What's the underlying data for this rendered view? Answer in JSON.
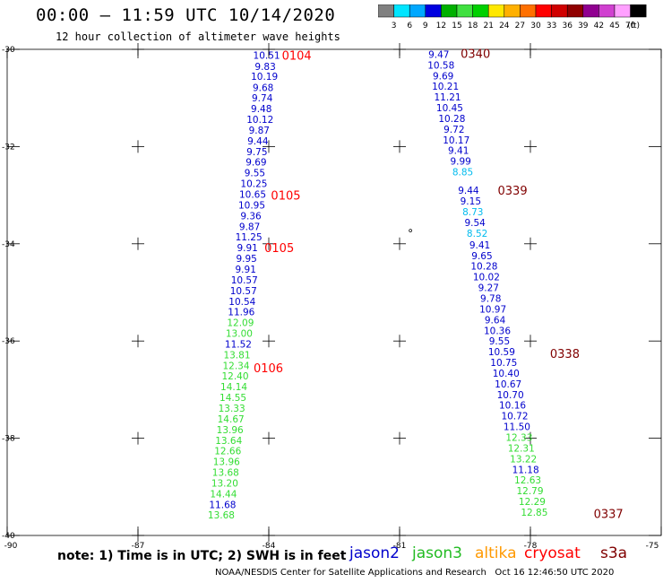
{
  "header": {
    "title": "00:00 – 11:59 UTC 10/14/2020",
    "subtitle": "12 hour collection of altimeter wave heights"
  },
  "colorbar": {
    "unit_label": "(ft)",
    "bins": [
      {
        "label": "3",
        "color": "#808080"
      },
      {
        "label": "6",
        "color": "#00e5ff"
      },
      {
        "label": "9",
        "color": "#00a8ff"
      },
      {
        "label": "12",
        "color": "#0000e0"
      },
      {
        "label": "15",
        "color": "#00b000"
      },
      {
        "label": "18",
        "color": "#40e040"
      },
      {
        "label": "21",
        "color": "#00d000"
      },
      {
        "label": "24",
        "color": "#ffe800"
      },
      {
        "label": "27",
        "color": "#ffb000"
      },
      {
        "label": "30",
        "color": "#ff7000"
      },
      {
        "label": "33",
        "color": "#ff0000"
      },
      {
        "label": "36",
        "color": "#d00000"
      },
      {
        "label": "39",
        "color": "#900000"
      },
      {
        "label": "42",
        "color": "#900090"
      },
      {
        "label": "45",
        "color": "#d040d0"
      },
      {
        "label": "70",
        "color": "#ffa0ff"
      },
      {
        "label": "",
        "color": "#000000"
      }
    ]
  },
  "map": {
    "lat_range": [
      -40,
      -30
    ],
    "lon_range": [
      -90,
      -75
    ],
    "lat_ticks": [
      "-30",
      "-32",
      "-34",
      "-36",
      "-38",
      "-40"
    ],
    "lon_ticks": [
      "-90",
      "-87",
      "-84",
      "-81",
      "-78",
      "-75"
    ],
    "colors": {
      "jason2": "#0000cc",
      "jason3": "#33dd33",
      "altika": "#ff9900",
      "cryosat": "#ff0000",
      "s3a": "#800000",
      "light_blue": "#00bbee"
    },
    "tracks": [
      {
        "name": "track-west",
        "points": [
          {
            "v": "10.51",
            "lat": -30.12,
            "lon": -84.05,
            "c": "jason2"
          },
          {
            "v": "9.83",
            "lat": -30.35,
            "lon": -84.08,
            "c": "jason2"
          },
          {
            "v": "10.19",
            "lat": -30.55,
            "lon": -84.1,
            "c": "jason2"
          },
          {
            "v": "9.68",
            "lat": -30.78,
            "lon": -84.13,
            "c": "jason2"
          },
          {
            "v": "9.74",
            "lat": -31.0,
            "lon": -84.15,
            "c": "jason2"
          },
          {
            "v": "9.48",
            "lat": -31.22,
            "lon": -84.17,
            "c": "jason2"
          },
          {
            "v": "10.12",
            "lat": -31.44,
            "lon": -84.2,
            "c": "jason2"
          },
          {
            "v": "9.87",
            "lat": -31.66,
            "lon": -84.22,
            "c": "jason2"
          },
          {
            "v": "9.44",
            "lat": -31.88,
            "lon": -84.25,
            "c": "jason2"
          },
          {
            "v": "9.75",
            "lat": -32.1,
            "lon": -84.27,
            "c": "jason2"
          },
          {
            "v": "9.69",
            "lat": -32.32,
            "lon": -84.29,
            "c": "jason2"
          },
          {
            "v": "9.55",
            "lat": -32.54,
            "lon": -84.32,
            "c": "jason2"
          },
          {
            "v": "10.25",
            "lat": -32.76,
            "lon": -84.34,
            "c": "jason2"
          },
          {
            "v": "10.65",
            "lat": -32.98,
            "lon": -84.37,
            "c": "jason2"
          },
          {
            "v": "10.95",
            "lat": -33.2,
            "lon": -84.39,
            "c": "jason2"
          },
          {
            "v": "9.36",
            "lat": -33.42,
            "lon": -84.41,
            "c": "jason2"
          },
          {
            "v": "9.87",
            "lat": -33.64,
            "lon": -84.44,
            "c": "jason2"
          },
          {
            "v": "11.25",
            "lat": -33.86,
            "lon": -84.46,
            "c": "jason2"
          },
          {
            "v": "9.91",
            "lat": -34.08,
            "lon": -84.49,
            "c": "jason2"
          },
          {
            "v": "9.95",
            "lat": -34.3,
            "lon": -84.51,
            "c": "jason2"
          },
          {
            "v": "9.91",
            "lat": -34.52,
            "lon": -84.53,
            "c": "jason2"
          },
          {
            "v": "10.57",
            "lat": -34.74,
            "lon": -84.56,
            "c": "jason2"
          },
          {
            "v": "10.57",
            "lat": -34.96,
            "lon": -84.58,
            "c": "jason2"
          },
          {
            "v": "10.54",
            "lat": -35.18,
            "lon": -84.61,
            "c": "jason2"
          },
          {
            "v": "11.96",
            "lat": -35.4,
            "lon": -84.63,
            "c": "jason2"
          },
          {
            "v": "12.09",
            "lat": -35.62,
            "lon": -84.65,
            "c": "jason3"
          },
          {
            "v": "13.00",
            "lat": -35.84,
            "lon": -84.68,
            "c": "jason3"
          },
          {
            "v": "11.52",
            "lat": -36.06,
            "lon": -84.7,
            "c": "jason2"
          },
          {
            "v": "13.81",
            "lat": -36.28,
            "lon": -84.73,
            "c": "jason3"
          },
          {
            "v": "12.34",
            "lat": -36.5,
            "lon": -84.75,
            "c": "jason3"
          },
          {
            "v": "12.40",
            "lat": -36.72,
            "lon": -84.77,
            "c": "jason3"
          },
          {
            "v": "14.14",
            "lat": -36.94,
            "lon": -84.8,
            "c": "jason3"
          },
          {
            "v": "14.55",
            "lat": -37.16,
            "lon": -84.82,
            "c": "jason3"
          },
          {
            "v": "13.33",
            "lat": -37.38,
            "lon": -84.85,
            "c": "jason3"
          },
          {
            "v": "14.67",
            "lat": -37.6,
            "lon": -84.87,
            "c": "jason3"
          },
          {
            "v": "13.96",
            "lat": -37.82,
            "lon": -84.89,
            "c": "jason3"
          },
          {
            "v": "13.64",
            "lat": -38.04,
            "lon": -84.92,
            "c": "jason3"
          },
          {
            "v": "12.66",
            "lat": -38.26,
            "lon": -84.94,
            "c": "jason3"
          },
          {
            "v": "13.96",
            "lat": -38.48,
            "lon": -84.97,
            "c": "jason3"
          },
          {
            "v": "13.68",
            "lat": -38.7,
            "lon": -84.99,
            "c": "jason3"
          },
          {
            "v": "13.20",
            "lat": -38.92,
            "lon": -85.01,
            "c": "jason3"
          },
          {
            "v": "14.44",
            "lat": -39.14,
            "lon": -85.04,
            "c": "jason3"
          },
          {
            "v": "11.68",
            "lat": -39.36,
            "lon": -85.06,
            "c": "jason2"
          },
          {
            "v": "13.68",
            "lat": -39.58,
            "lon": -85.09,
            "c": "jason3"
          }
        ]
      },
      {
        "name": "track-east",
        "points": [
          {
            "v": "9.47",
            "lat": -30.1,
            "lon": -80.1,
            "c": "jason2"
          },
          {
            "v": "10.58",
            "lat": -30.32,
            "lon": -80.05,
            "c": "jason2"
          },
          {
            "v": "9.69",
            "lat": -30.54,
            "lon": -80.0,
            "c": "jason2"
          },
          {
            "v": "10.21",
            "lat": -30.76,
            "lon": -79.95,
            "c": "jason2"
          },
          {
            "v": "11.21",
            "lat": -30.98,
            "lon": -79.9,
            "c": "jason2"
          },
          {
            "v": "10.45",
            "lat": -31.2,
            "lon": -79.85,
            "c": "jason2"
          },
          {
            "v": "10.28",
            "lat": -31.42,
            "lon": -79.8,
            "c": "jason2"
          },
          {
            "v": "9.72",
            "lat": -31.64,
            "lon": -79.75,
            "c": "jason2"
          },
          {
            "v": "10.17",
            "lat": -31.86,
            "lon": -79.7,
            "c": "jason2"
          },
          {
            "v": "9.41",
            "lat": -32.08,
            "lon": -79.65,
            "c": "jason2"
          },
          {
            "v": "9.99",
            "lat": -32.3,
            "lon": -79.6,
            "c": "jason2"
          },
          {
            "v": "8.85",
            "lat": -32.52,
            "lon": -79.55,
            "c": "light_blue"
          },
          {
            "v": "9.44",
            "lat": -32.9,
            "lon": -79.42,
            "c": "jason2"
          },
          {
            "v": "9.15",
            "lat": -33.12,
            "lon": -79.37,
            "c": "jason2"
          },
          {
            "v": "8.73",
            "lat": -33.34,
            "lon": -79.32,
            "c": "light_blue"
          },
          {
            "v": "9.54",
            "lat": -33.56,
            "lon": -79.27,
            "c": "jason2"
          },
          {
            "v": "8.52",
            "lat": -33.78,
            "lon": -79.22,
            "c": "light_blue"
          },
          {
            "v": "9.41",
            "lat": -34.02,
            "lon": -79.16,
            "c": "jason2"
          },
          {
            "v": "9.65",
            "lat": -34.24,
            "lon": -79.11,
            "c": "jason2"
          },
          {
            "v": "10.28",
            "lat": -34.46,
            "lon": -79.06,
            "c": "jason2"
          },
          {
            "v": "10.02",
            "lat": -34.68,
            "lon": -79.01,
            "c": "jason2"
          },
          {
            "v": "9.27",
            "lat": -34.9,
            "lon": -78.96,
            "c": "jason2"
          },
          {
            "v": "9.78",
            "lat": -35.12,
            "lon": -78.91,
            "c": "jason2"
          },
          {
            "v": "10.97",
            "lat": -35.34,
            "lon": -78.86,
            "c": "jason2"
          },
          {
            "v": "9.64",
            "lat": -35.56,
            "lon": -78.81,
            "c": "jason2"
          },
          {
            "v": "10.36",
            "lat": -35.78,
            "lon": -78.76,
            "c": "jason2"
          },
          {
            "v": "9.55",
            "lat": -36.0,
            "lon": -78.71,
            "c": "jason2"
          },
          {
            "v": "10.59",
            "lat": -36.22,
            "lon": -78.66,
            "c": "jason2"
          },
          {
            "v": "10.75",
            "lat": -36.44,
            "lon": -78.61,
            "c": "jason2"
          },
          {
            "v": "10.40",
            "lat": -36.66,
            "lon": -78.56,
            "c": "jason2"
          },
          {
            "v": "10.67",
            "lat": -36.88,
            "lon": -78.51,
            "c": "jason2"
          },
          {
            "v": "10.70",
            "lat": -37.1,
            "lon": -78.46,
            "c": "jason2"
          },
          {
            "v": "10.16",
            "lat": -37.32,
            "lon": -78.41,
            "c": "jason2"
          },
          {
            "v": "10.72",
            "lat": -37.54,
            "lon": -78.36,
            "c": "jason2"
          },
          {
            "v": "11.50",
            "lat": -37.76,
            "lon": -78.31,
            "c": "jason2"
          },
          {
            "v": "12.33",
            "lat": -37.98,
            "lon": -78.26,
            "c": "jason3"
          },
          {
            "v": "12.31",
            "lat": -38.2,
            "lon": -78.21,
            "c": "jason3"
          },
          {
            "v": "13.22",
            "lat": -38.42,
            "lon": -78.16,
            "c": "jason3"
          },
          {
            "v": "11.18",
            "lat": -38.64,
            "lon": -78.11,
            "c": "jason2"
          },
          {
            "v": "12.63",
            "lat": -38.86,
            "lon": -78.06,
            "c": "jason3"
          },
          {
            "v": "12.79",
            "lat": -39.08,
            "lon": -78.01,
            "c": "jason3"
          },
          {
            "v": "12.29",
            "lat": -39.3,
            "lon": -77.96,
            "c": "jason3"
          },
          {
            "v": "12.85",
            "lat": -39.52,
            "lon": -77.91,
            "c": "jason3"
          }
        ]
      }
    ],
    "time_labels": [
      {
        "text": "0104",
        "lat": -30.12,
        "lon": -83.7,
        "c": "cryosat"
      },
      {
        "text": "0105",
        "lat": -33.0,
        "lon": -83.95,
        "c": "cryosat"
      },
      {
        "text": "0105",
        "lat": -34.08,
        "lon": -84.1,
        "c": "cryosat"
      },
      {
        "text": "0106",
        "lat": -36.55,
        "lon": -84.35,
        "c": "cryosat"
      },
      {
        "text": "0340",
        "lat": -30.08,
        "lon": -79.6,
        "c": "s3a"
      },
      {
        "text": "0339",
        "lat": -32.9,
        "lon": -78.75,
        "c": "s3a"
      },
      {
        "text": "0338",
        "lat": -36.25,
        "lon": -77.55,
        "c": "s3a"
      },
      {
        "text": "0337",
        "lat": -39.55,
        "lon": -76.55,
        "c": "s3a"
      }
    ],
    "island_marker": {
      "lat": -33.75,
      "lon": -80.75,
      "glyph": "°"
    }
  },
  "note": {
    "text": "note: 1) Time is in UTC; 2) SWH is in feet"
  },
  "legend": [
    {
      "label": "jason2",
      "color": "#0000cc"
    },
    {
      "label": "jason3",
      "color": "#22bb22"
    },
    {
      "label": "altika",
      "color": "#ff9900"
    },
    {
      "label": "cryosat",
      "color": "#ff0000"
    },
    {
      "label": "s3a",
      "color": "#800000"
    }
  ],
  "footer": {
    "credit": "NOAA/NESDIS Center for Satellite Applications and Research",
    "timestamp": "Oct 16 12:46:50 UTC 2020"
  }
}
